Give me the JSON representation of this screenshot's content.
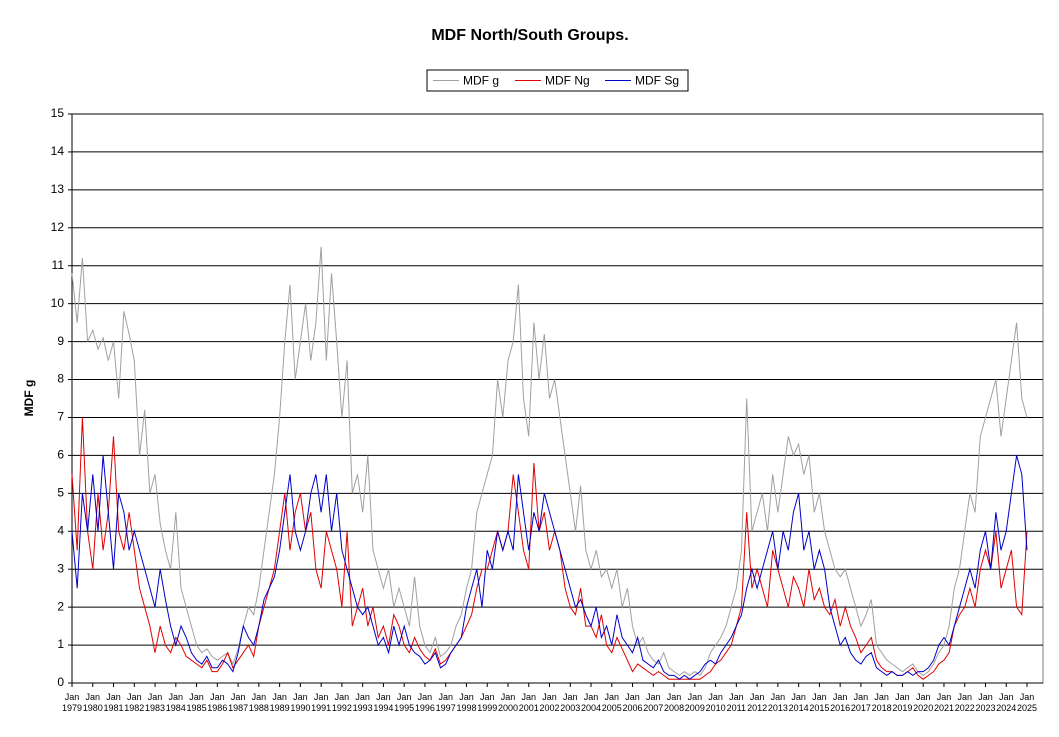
{
  "chart_data": {
    "type": "line",
    "title": "MDF North/South Groups.",
    "ylabel": "MDF g",
    "legend": "top",
    "grid": true,
    "ylim": [
      0,
      15
    ],
    "yticks": [
      0,
      1,
      2,
      3,
      4,
      5,
      6,
      7,
      8,
      9,
      10,
      11,
      12,
      13,
      14,
      15
    ],
    "categories": [
      "Jan 1979",
      null,
      null,
      null,
      "Jan 1980",
      null,
      null,
      null,
      "Jan 1981",
      null,
      null,
      null,
      "Jan 1982",
      null,
      null,
      null,
      "Jan 1983",
      null,
      null,
      null,
      "Jan 1984",
      null,
      null,
      null,
      "Jan 1985",
      null,
      null,
      null,
      "Jan 1986",
      null,
      null,
      null,
      "Jan 1987",
      null,
      null,
      null,
      "Jan 1988",
      null,
      null,
      null,
      "Jan 1989",
      null,
      null,
      null,
      "Jan 1990",
      null,
      null,
      null,
      "Jan 1991",
      null,
      null,
      null,
      "Jan 1992",
      null,
      null,
      null,
      "Jan 1993",
      null,
      null,
      null,
      "Jan 1994",
      null,
      null,
      null,
      "Jan 1995",
      null,
      null,
      null,
      "Jan 1996",
      null,
      null,
      null,
      "Jan 1997",
      null,
      null,
      null,
      "Jan 1998",
      null,
      null,
      null,
      "Jan 1999",
      null,
      null,
      null,
      "Jan 2000",
      null,
      null,
      null,
      "Jan 2001",
      null,
      null,
      null,
      "Jan 2002",
      null,
      null,
      null,
      "Jan 2003",
      null,
      null,
      null,
      "Jan 2004",
      null,
      null,
      null,
      "Jan 2005",
      null,
      null,
      null,
      "Jan 2006",
      null,
      null,
      null,
      "Jan 2007",
      null,
      null,
      null,
      "Jan 2008",
      null,
      null,
      null,
      "Jan 2009",
      null,
      null,
      null,
      "Jan 2010",
      null,
      null,
      null,
      "Jan 2011",
      null,
      null,
      null,
      "Jan 2012",
      null,
      null,
      null,
      "Jan 2013",
      null,
      null,
      null,
      "Jan 2014",
      null,
      null,
      null,
      "Jan 2015",
      null,
      null,
      null,
      "Jan 2016",
      null,
      null,
      null,
      "Jan 2017",
      null,
      null,
      null,
      "Jan 2018",
      null,
      null,
      null,
      "Jan 2019",
      null,
      null,
      null,
      "Jan 2020",
      null,
      null,
      null,
      "Jan 2021",
      null,
      null,
      null,
      "Jan 2022",
      null,
      null,
      null,
      "Jan 2023",
      null,
      null,
      null,
      "Jan 2024",
      null,
      null,
      null,
      "Jan 2025"
    ],
    "series": [
      {
        "name": "MDF g",
        "color": "#a0a0a0",
        "values": [
          10.8,
          9.5,
          11.2,
          9.0,
          9.3,
          8.8,
          9.1,
          8.5,
          9.0,
          7.5,
          9.8,
          9.2,
          8.5,
          6.0,
          7.2,
          5.0,
          5.5,
          4.2,
          3.5,
          3.0,
          4.5,
          2.5,
          2.0,
          1.5,
          1.0,
          0.8,
          0.9,
          0.7,
          0.6,
          0.7,
          0.8,
          0.5,
          0.9,
          1.5,
          2.0,
          1.8,
          2.5,
          3.5,
          4.5,
          5.5,
          7.0,
          9.0,
          10.5,
          8.0,
          9.0,
          10.0,
          8.5,
          9.5,
          11.5,
          8.5,
          10.8,
          9.0,
          7.0,
          8.5,
          5.0,
          5.5,
          4.5,
          6.0,
          3.5,
          3.0,
          2.5,
          3.0,
          2.0,
          2.5,
          2.0,
          1.5,
          2.8,
          1.5,
          1.0,
          0.8,
          1.2,
          0.7,
          0.8,
          1.0,
          1.5,
          1.8,
          2.5,
          3.0,
          4.5,
          5.0,
          5.5,
          6.0,
          8.0,
          7.0,
          8.5,
          9.0,
          10.5,
          7.5,
          6.5,
          9.5,
          8.0,
          9.2,
          7.5,
          8.0,
          7.0,
          6.0,
          5.0,
          4.0,
          5.2,
          3.5,
          3.0,
          3.5,
          2.8,
          3.0,
          2.5,
          3.0,
          2.0,
          2.5,
          1.5,
          1.0,
          1.2,
          0.8,
          0.6,
          0.5,
          0.8,
          0.4,
          0.3,
          0.2,
          0.3,
          0.2,
          0.3,
          0.2,
          0.4,
          0.8,
          1.0,
          1.2,
          1.5,
          2.0,
          2.5,
          3.5,
          7.5,
          4.0,
          4.5,
          5.0,
          4.0,
          5.5,
          4.5,
          5.5,
          6.5,
          6.0,
          6.3,
          5.5,
          6.0,
          4.5,
          5.0,
          4.0,
          3.5,
          3.0,
          2.8,
          3.0,
          2.5,
          2.0,
          1.5,
          1.8,
          2.2,
          1.0,
          0.8,
          0.6,
          0.5,
          0.4,
          0.3,
          0.4,
          0.5,
          0.3,
          0.2,
          0.3,
          0.5,
          0.8,
          1.0,
          1.5,
          2.5,
          3.0,
          4.0,
          5.0,
          4.5,
          6.5,
          7.0,
          7.5,
          8.0,
          6.5,
          7.5,
          8.5,
          9.5,
          7.5,
          7.0
        ]
      },
      {
        "name": "MDF Ng",
        "color": "#e00000",
        "values": [
          5.5,
          3.5,
          7.0,
          4.0,
          3.0,
          5.0,
          3.5,
          4.5,
          6.5,
          4.0,
          3.5,
          4.5,
          3.5,
          2.5,
          2.0,
          1.5,
          0.8,
          1.5,
          1.0,
          0.8,
          1.2,
          1.0,
          0.7,
          0.6,
          0.5,
          0.4,
          0.6,
          0.3,
          0.3,
          0.5,
          0.8,
          0.4,
          0.6,
          0.8,
          1.0,
          0.7,
          1.5,
          2.0,
          2.5,
          3.0,
          4.0,
          5.0,
          3.5,
          4.5,
          5.0,
          4.0,
          4.5,
          3.0,
          2.5,
          4.0,
          3.5,
          3.0,
          2.0,
          4.0,
          1.5,
          2.0,
          2.5,
          1.5,
          2.0,
          1.2,
          1.5,
          1.0,
          1.8,
          1.5,
          1.0,
          0.8,
          1.2,
          0.9,
          0.7,
          0.6,
          0.9,
          0.5,
          0.6,
          0.8,
          1.0,
          1.2,
          1.5,
          1.8,
          2.5,
          3.0,
          3.0,
          3.5,
          4.0,
          3.5,
          4.0,
          5.5,
          4.5,
          3.5,
          3.0,
          5.8,
          4.0,
          4.5,
          3.5,
          4.0,
          3.5,
          2.5,
          2.0,
          1.8,
          2.5,
          1.5,
          1.5,
          1.2,
          1.8,
          1.0,
          0.8,
          1.2,
          0.9,
          0.6,
          0.3,
          0.5,
          0.4,
          0.3,
          0.2,
          0.3,
          0.2,
          0.1,
          0.1,
          0.1,
          0.1,
          0.1,
          0.1,
          0.1,
          0.2,
          0.3,
          0.5,
          0.6,
          0.8,
          1.0,
          1.5,
          2.0,
          4.5,
          2.5,
          3.0,
          2.5,
          2.0,
          3.5,
          3.0,
          2.5,
          2.0,
          2.8,
          2.5,
          2.0,
          3.0,
          2.2,
          2.5,
          2.0,
          1.8,
          2.2,
          1.5,
          2.0,
          1.5,
          1.2,
          0.8,
          1.0,
          1.2,
          0.6,
          0.4,
          0.3,
          0.3,
          0.2,
          0.2,
          0.3,
          0.4,
          0.2,
          0.1,
          0.2,
          0.3,
          0.5,
          0.6,
          0.8,
          1.5,
          1.8,
          2.0,
          2.5,
          2.0,
          3.0,
          3.5,
          3.0,
          4.0,
          2.5,
          3.0,
          3.5,
          2.0,
          1.8,
          4.0
        ]
      },
      {
        "name": "MDF Sg",
        "color": "#0000c8",
        "values": [
          4.0,
          2.5,
          5.0,
          4.0,
          5.5,
          4.0,
          6.0,
          4.5,
          3.0,
          5.0,
          4.5,
          3.5,
          4.0,
          3.5,
          3.0,
          2.5,
          2.0,
          3.0,
          2.2,
          1.5,
          1.0,
          1.5,
          1.2,
          0.8,
          0.6,
          0.5,
          0.7,
          0.4,
          0.4,
          0.6,
          0.5,
          0.3,
          0.8,
          1.5,
          1.2,
          1.0,
          1.5,
          2.2,
          2.5,
          2.8,
          3.5,
          4.5,
          5.5,
          4.0,
          3.5,
          4.0,
          5.0,
          5.5,
          4.5,
          5.5,
          4.0,
          5.0,
          3.5,
          3.0,
          2.5,
          2.0,
          1.8,
          2.0,
          1.5,
          1.0,
          1.2,
          0.8,
          1.5,
          1.0,
          1.5,
          1.0,
          0.8,
          0.7,
          0.5,
          0.6,
          0.8,
          0.4,
          0.5,
          0.8,
          1.0,
          1.2,
          2.0,
          2.5,
          3.0,
          2.0,
          3.5,
          3.0,
          4.0,
          3.5,
          4.0,
          3.5,
          5.5,
          4.5,
          3.5,
          4.5,
          4.0,
          5.0,
          4.5,
          4.0,
          3.5,
          3.0,
          2.5,
          2.0,
          2.2,
          1.8,
          1.5,
          2.0,
          1.2,
          1.5,
          1.0,
          1.8,
          1.2,
          1.0,
          0.8,
          1.2,
          0.6,
          0.5,
          0.4,
          0.6,
          0.3,
          0.2,
          0.2,
          0.1,
          0.2,
          0.1,
          0.2,
          0.3,
          0.5,
          0.6,
          0.5,
          0.8,
          1.0,
          1.2,
          1.5,
          1.8,
          2.5,
          3.0,
          2.5,
          3.0,
          3.5,
          4.0,
          3.0,
          4.0,
          3.5,
          4.5,
          5.0,
          3.5,
          4.0,
          3.0,
          3.5,
          3.0,
          2.0,
          1.5,
          1.0,
          1.2,
          0.8,
          0.6,
          0.5,
          0.7,
          0.8,
          0.4,
          0.3,
          0.2,
          0.3,
          0.2,
          0.2,
          0.3,
          0.2,
          0.3,
          0.3,
          0.4,
          0.6,
          1.0,
          1.2,
          1.0,
          1.5,
          2.0,
          2.5,
          3.0,
          2.5,
          3.5,
          4.0,
          3.0,
          4.5,
          3.5,
          4.0,
          5.0,
          6.0,
          5.5,
          3.5
        ]
      }
    ]
  }
}
